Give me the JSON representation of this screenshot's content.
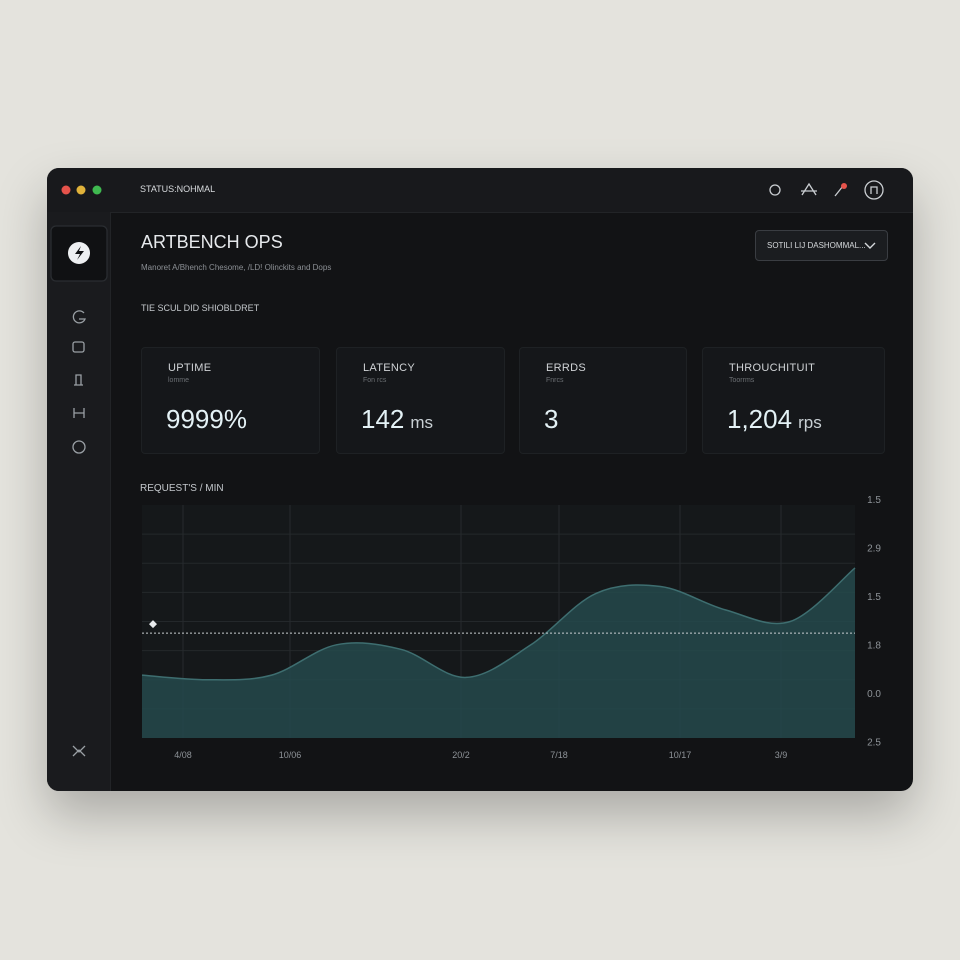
{
  "window": {
    "status": "STATUS:NOHMAL"
  },
  "header": {
    "title": "ARTBENCH OPS",
    "subtitle": "Manoret A/Bhench Chesome, /LD! Olinckits and Dops",
    "dropdown": "SOTILI LIJ DASHOMMAL..."
  },
  "section_label": "TIE SCUL DID SHIOBLDRET",
  "cards": [
    {
      "label": "UPTIME",
      "sublabel": "lomme",
      "value": "9999%"
    },
    {
      "label": "LATENCY",
      "sublabel": "Fon rcs",
      "value": "142",
      "unit": "ms"
    },
    {
      "label": "ERRDS",
      "sublabel": "Fnrcs",
      "value": "3"
    },
    {
      "label": "THROUCHITUIT",
      "sublabel": "Toorrms",
      "value": "1,204",
      "unit": "rps"
    }
  ],
  "chart": {
    "title": "REQUEST'S / MIN",
    "color": "#24494c",
    "line_color": "#3e6e70",
    "values": [
      27,
      25,
      27,
      40,
      38,
      26,
      40,
      62,
      65,
      55,
      50,
      73
    ],
    "ylim": [
      0,
      100
    ],
    "reference": 45,
    "x_labels": [
      "4/08",
      "10/06",
      "20/2",
      "7/18",
      "10/17",
      "3/9"
    ],
    "y_labels": [
      "1.5",
      "2.9",
      "1.5",
      "1.8",
      "0.0",
      "2.5"
    ]
  }
}
